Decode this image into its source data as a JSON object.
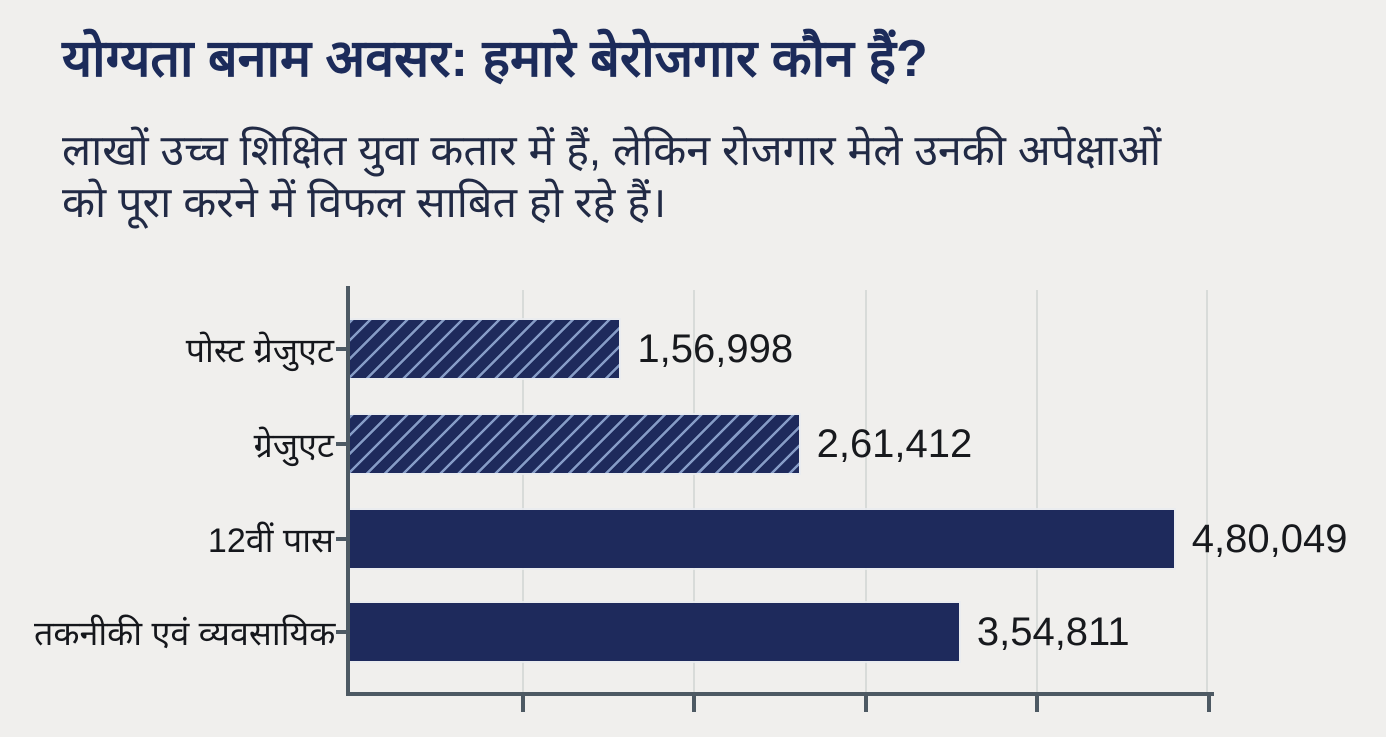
{
  "page": {
    "title": "योग्यता बनाम अवसर: हमारे बेरोजगार कौन हैं?",
    "subtitle_line1": "लाखों उच्च शिक्षित युवा कतार में हैं, लेकिन रोजगार मेले उनकी अपेक्षाओं",
    "subtitle_line2": "को पूरा करने में विफल साबित हो रहे हैं।"
  },
  "chart_data": {
    "type": "bar",
    "orientation": "horizontal",
    "title": "योग्यता बनाम अवसर: हमारे बेरोजगार कौन हैं?",
    "subtitle": "लाखों उच्च शिक्षित युवा कतार में हैं, लेकिन रोजगार मेले उनकी अपेक्षाओं को पूरा करने में विफल साबित हो रहे हैं।",
    "categories": [
      "पोस्ट ग्रेजुएट",
      "ग्रेजुएट",
      "12वीं पास",
      "तकनीकी एवं व्यवसायिक"
    ],
    "values": [
      156998,
      261412,
      480049,
      354811
    ],
    "value_labels": [
      "1,56,998",
      "2,61,412",
      "4,80,049",
      "3,54,811"
    ],
    "bar_styles": [
      "hatched",
      "hatched",
      "solid",
      "solid"
    ],
    "xlim": [
      0,
      500000
    ],
    "x_gridline_step": 100000,
    "grid": true,
    "x_tick_labels_visible": false,
    "value_label_position": "end-of-bar",
    "colors": {
      "bar": "#1e2a5c",
      "hatch_stripe": "#8ca2cd",
      "axis": "#4d5963",
      "gridline": "#d8dbd9",
      "title": "#1c2b5a",
      "subtitle": "#212a45",
      "background": "#f0efed",
      "value_text": "#17191d",
      "category_text": "#15171c"
    }
  }
}
